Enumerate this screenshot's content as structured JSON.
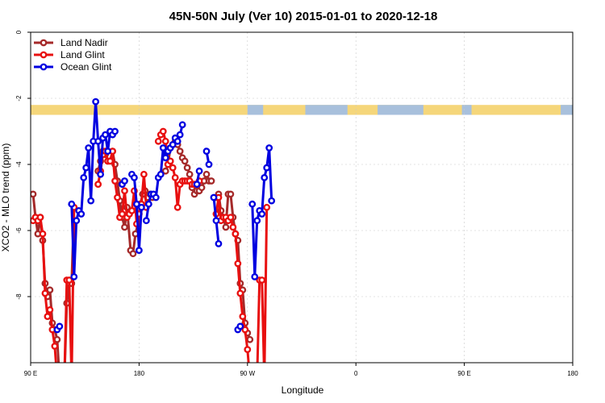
{
  "chart_data": {
    "type": "line",
    "title": "45N-50N July (Ver 10)   2015-01-01 to 2020-12-18",
    "xlabel": "Longitude",
    "ylabel": "XCO2 - MLO trend (ppm)",
    "xlim": [
      90,
      450
    ],
    "ylim": [
      -10,
      0
    ],
    "x_ticks": [
      {
        "value": 90,
        "label": "90 E"
      },
      {
        "value": 180,
        "label": "180"
      },
      {
        "value": 270,
        "label": "90 W"
      },
      {
        "value": 360,
        "label": "0"
      },
      {
        "value": 450,
        "label": "90 E"
      },
      {
        "value": 540,
        "label": "180"
      }
    ],
    "y_ticks": [
      {
        "value": 0,
        "label": "0"
      },
      {
        "value": -2,
        "label": "-2"
      },
      {
        "value": -4,
        "label": "-4"
      },
      {
        "value": -6,
        "label": "-6"
      },
      {
        "value": -8,
        "label": "-8"
      }
    ],
    "x_axis_range_display": [
      90,
      540
    ],
    "land_ocean_band": {
      "y_top": -2.2,
      "y_bottom": -2.5,
      "land_color": "#f5d67a",
      "ocean_color": "#a8c0dc"
    },
    "legend_position": "top-left",
    "series": [
      {
        "name": "Land Nadir",
        "color": "#a52a2a",
        "points": [
          [
            92,
            -4.9
          ],
          [
            94,
            -5.6
          ],
          [
            96,
            -6.1
          ],
          [
            98,
            -5.6
          ],
          [
            100,
            -6.3
          ],
          [
            102,
            -7.6
          ],
          [
            104,
            -8.0
          ],
          [
            106,
            -7.8
          ],
          [
            108,
            -8.8
          ],
          [
            110,
            -9.0
          ],
          [
            112,
            -9.3
          ],
          [
            114,
            -10.5
          ],
          [
            118,
            -10.5
          ],
          [
            120,
            -8.2
          ],
          [
            122,
            -7.6
          ],
          [
            124,
            -7.6
          ],
          [
            126,
            -5.3
          ],
          [
            146,
            -4.2
          ],
          [
            148,
            -3.9
          ],
          [
            150,
            -3.6
          ],
          [
            152,
            -3.7
          ],
          [
            154,
            -3.9
          ],
          [
            156,
            -3.9
          ],
          [
            158,
            -3.6
          ],
          [
            160,
            -4.0
          ],
          [
            162,
            -4.5
          ],
          [
            164,
            -5.1
          ],
          [
            166,
            -5.6
          ],
          [
            168,
            -5.9
          ],
          [
            170,
            -5.3
          ],
          [
            173,
            -6.6
          ],
          [
            175,
            -6.7
          ],
          [
            177,
            -6.1
          ],
          [
            179,
            -5.8
          ],
          [
            181,
            -5.2
          ],
          [
            183,
            -4.9
          ],
          [
            185,
            -4.8
          ],
          [
            187,
            -5.0
          ],
          [
            189,
            -4.9
          ],
          [
            191,
            -5.0
          ],
          [
            202,
            -4.2
          ],
          [
            204,
            -4.0
          ],
          [
            206,
            -3.5
          ],
          [
            208,
            -3.4
          ],
          [
            210,
            -3.3
          ],
          [
            212,
            -3.4
          ],
          [
            214,
            -3.6
          ],
          [
            216,
            -3.8
          ],
          [
            218,
            -3.9
          ],
          [
            220,
            -4.1
          ],
          [
            222,
            -4.3
          ],
          [
            224,
            -4.7
          ],
          [
            226,
            -4.9
          ],
          [
            228,
            -4.8
          ],
          [
            230,
            -4.8
          ],
          [
            232,
            -4.7
          ],
          [
            234,
            -4.5
          ],
          [
            236,
            -4.3
          ],
          [
            238,
            -4.5
          ],
          [
            240,
            -4.5
          ],
          [
            244,
            -5.0
          ],
          [
            246,
            -4.9
          ],
          [
            248,
            -5.4
          ],
          [
            250,
            -5.6
          ],
          [
            252,
            -5.9
          ],
          [
            254,
            -4.9
          ],
          [
            256,
            -4.9
          ],
          [
            258,
            -5.6
          ],
          [
            260,
            -6.1
          ],
          [
            262,
            -6.3
          ],
          [
            264,
            -7.6
          ],
          [
            266,
            -7.8
          ],
          [
            268,
            -8.8
          ],
          [
            270,
            -9.1
          ],
          [
            272,
            -9.3
          ]
        ]
      },
      {
        "name": "Land Glint",
        "color": "#e81010",
        "points": [
          [
            92,
            -5.7
          ],
          [
            94,
            -5.6
          ],
          [
            96,
            -5.7
          ],
          [
            98,
            -5.6
          ],
          [
            100,
            -6.1
          ],
          [
            102,
            -7.9
          ],
          [
            104,
            -8.6
          ],
          [
            106,
            -8.4
          ],
          [
            108,
            -9.0
          ],
          [
            110,
            -9.5
          ],
          [
            112,
            -10.5
          ],
          [
            118,
            -10.5
          ],
          [
            120,
            -7.5
          ],
          [
            122,
            -7.5
          ],
          [
            124,
            -10.5
          ],
          [
            126,
            -5.3
          ],
          [
            146,
            -4.6
          ],
          [
            148,
            -4.2
          ],
          [
            150,
            -3.7
          ],
          [
            152,
            -3.6
          ],
          [
            154,
            -3.9
          ],
          [
            156,
            -3.9
          ],
          [
            158,
            -3.6
          ],
          [
            160,
            -4.5
          ],
          [
            162,
            -5.0
          ],
          [
            164,
            -5.6
          ],
          [
            166,
            -5.5
          ],
          [
            168,
            -4.8
          ],
          [
            170,
            -5.6
          ],
          [
            172,
            -5.5
          ],
          [
            174,
            -5.4
          ],
          [
            176,
            -4.8
          ],
          [
            178,
            -5.8
          ],
          [
            180,
            -5.5
          ],
          [
            182,
            -5.2
          ],
          [
            184,
            -4.3
          ],
          [
            186,
            -5.3
          ],
          [
            196,
            -3.3
          ],
          [
            198,
            -3.1
          ],
          [
            200,
            -3.0
          ],
          [
            202,
            -3.3
          ],
          [
            204,
            -4.0
          ],
          [
            206,
            -3.9
          ],
          [
            208,
            -4.1
          ],
          [
            210,
            -4.4
          ],
          [
            212,
            -5.3
          ],
          [
            214,
            -4.6
          ],
          [
            216,
            -4.5
          ],
          [
            218,
            -4.5
          ],
          [
            220,
            -4.5
          ],
          [
            222,
            -4.5
          ],
          [
            224,
            -4.6
          ],
          [
            226,
            -4.6
          ],
          [
            228,
            -4.6
          ],
          [
            230,
            -4.5
          ],
          [
            244,
            -5.5
          ],
          [
            246,
            -5.0
          ],
          [
            248,
            -5.7
          ],
          [
            250,
            -5.6
          ],
          [
            252,
            -5.6
          ],
          [
            254,
            -5.7
          ],
          [
            256,
            -5.6
          ],
          [
            258,
            -5.9
          ],
          [
            260,
            -6.1
          ],
          [
            262,
            -7.0
          ],
          [
            264,
            -7.9
          ],
          [
            266,
            -8.6
          ],
          [
            268,
            -9.0
          ],
          [
            270,
            -9.6
          ],
          [
            272,
            -10.5
          ],
          [
            278,
            -10.5
          ],
          [
            280,
            -7.5
          ],
          [
            282,
            -7.5
          ],
          [
            284,
            -10.5
          ],
          [
            286,
            -5.3
          ]
        ]
      },
      {
        "name": "Ocean Glint",
        "color": "#0000e0",
        "points": [
          [
            112,
            -9.0
          ],
          [
            114,
            -8.9
          ],
          [
            124,
            -5.2
          ],
          [
            126,
            -7.4
          ],
          [
            128,
            -5.7
          ],
          [
            130,
            -5.4
          ],
          [
            132,
            -5.5
          ],
          [
            134,
            -4.4
          ],
          [
            136,
            -4.1
          ],
          [
            138,
            -3.5
          ],
          [
            140,
            -5.1
          ],
          [
            142,
            -3.3
          ],
          [
            144,
            -2.1
          ],
          [
            146,
            -3.3
          ],
          [
            148,
            -4.3
          ],
          [
            150,
            -3.2
          ],
          [
            152,
            -3.1
          ],
          [
            154,
            -3.6
          ],
          [
            156,
            -3.0
          ],
          [
            158,
            -3.1
          ],
          [
            160,
            -3.0
          ],
          [
            166,
            -4.6
          ],
          [
            168,
            -4.5
          ],
          [
            174,
            -4.3
          ],
          [
            176,
            -4.4
          ],
          [
            178,
            -5.2
          ],
          [
            180,
            -6.6
          ],
          [
            182,
            -5.3
          ],
          [
            186,
            -5.7
          ],
          [
            188,
            -5.2
          ],
          [
            190,
            -4.9
          ],
          [
            192,
            -4.9
          ],
          [
            194,
            -5.0
          ],
          [
            196,
            -4.4
          ],
          [
            198,
            -4.3
          ],
          [
            200,
            -3.5
          ],
          [
            202,
            -3.8
          ],
          [
            204,
            -3.6
          ],
          [
            206,
            -3.5
          ],
          [
            208,
            -3.4
          ],
          [
            210,
            -3.2
          ],
          [
            212,
            -3.3
          ],
          [
            214,
            -3.1
          ],
          [
            216,
            -2.8
          ],
          [
            228,
            -4.6
          ],
          [
            230,
            -4.2
          ],
          [
            236,
            -3.6
          ],
          [
            238,
            -4.0
          ],
          [
            242,
            -5.0
          ],
          [
            244,
            -5.7
          ],
          [
            246,
            -6.4
          ],
          [
            262,
            -9.0
          ],
          [
            264,
            -8.9
          ],
          [
            274,
            -5.2
          ],
          [
            276,
            -7.4
          ],
          [
            278,
            -5.7
          ],
          [
            280,
            -5.4
          ],
          [
            282,
            -5.5
          ],
          [
            284,
            -4.4
          ],
          [
            286,
            -4.1
          ],
          [
            288,
            -3.5
          ],
          [
            290,
            -5.1
          ]
        ]
      }
    ]
  }
}
